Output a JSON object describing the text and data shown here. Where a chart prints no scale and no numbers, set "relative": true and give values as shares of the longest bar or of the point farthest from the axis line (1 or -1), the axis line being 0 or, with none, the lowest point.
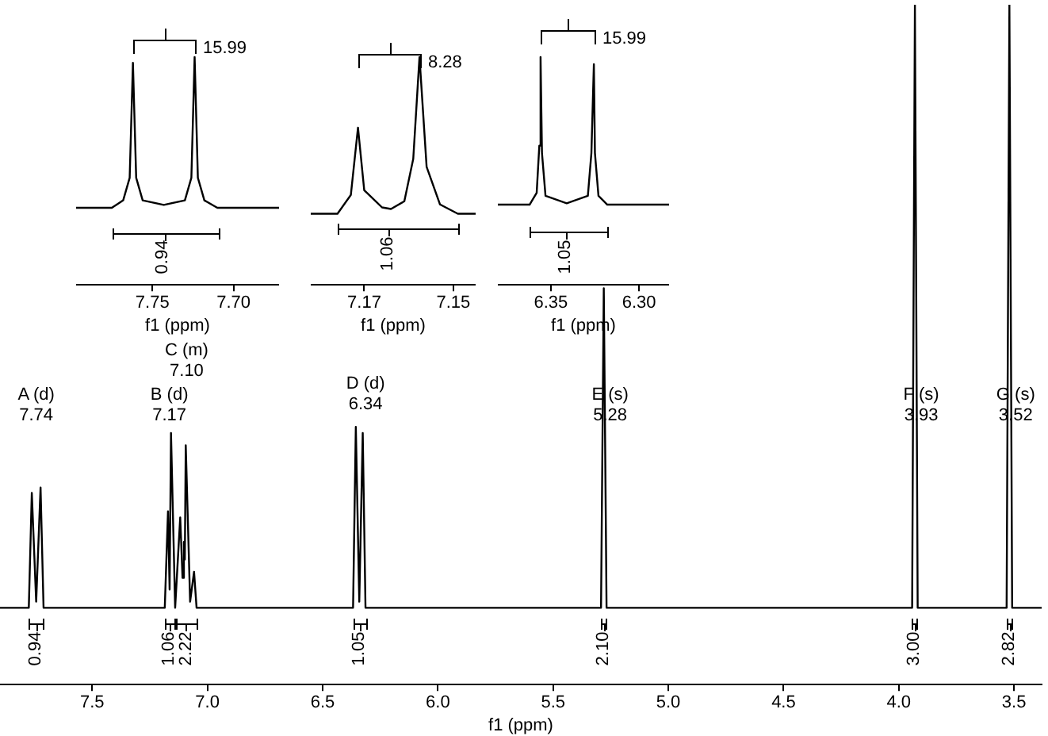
{
  "chart_data": [
    {
      "type": "line",
      "xlabel": "f1 (ppm)",
      "relative": true,
      "color": "#000000",
      "xlim": [
        7.9,
        3.38
      ],
      "xticks": [
        7.5,
        {
          "value": 7,
          "label": "7.0"
        },
        6.5,
        {
          "value": 6,
          "label": "6.0"
        },
        5.5,
        {
          "value": 5,
          "label": "5.0"
        },
        4.5,
        {
          "value": 4,
          "label": "4.0"
        },
        3.5
      ],
      "x": [
        7.9,
        7.775,
        7.762,
        7.743,
        7.724,
        7.711,
        7.185,
        7.171,
        7.164,
        7.158,
        7.14,
        7.118,
        7.108,
        7.102,
        7.098,
        7.094,
        7.075,
        7.058,
        7.047,
        6.368,
        6.356,
        6.341,
        6.326,
        6.314,
        5.292,
        5.28,
        5.268,
        3.942,
        3.93,
        3.918,
        3.532,
        3.52,
        3.508,
        3.38
      ],
      "values": [
        0.113,
        0.113,
        0.282,
        0.122,
        0.29,
        0.113,
        0.113,
        0.255,
        0.14,
        0.37,
        0.113,
        0.246,
        0.157,
        0.21,
        0.184,
        0.352,
        0.122,
        0.166,
        0.113,
        0.113,
        0.379,
        0.122,
        0.37,
        0.113,
        0.113,
        0.583,
        0.113,
        0.113,
        1,
        0.113,
        0.113,
        1,
        0.113,
        0.113
      ],
      "annotations": [
        "A (d)\n7.74",
        "B (d)\n7.17",
        "C (m)\n7.10",
        "D (d)\n6.34",
        "E (s)\n5.28",
        "F (s)\n3.93",
        "G (s)\n3.52",
        "0.94",
        "1.06",
        "2.22",
        "1.05",
        "2.10",
        "3.00",
        "2.82"
      ]
    },
    {
      "type": "line",
      "xlabel": "f1 (ppm)",
      "relative": true,
      "color": "#000000",
      "xlim": [
        7.797,
        7.672
      ],
      "xticks": [
        7.75,
        {
          "value": 7.7,
          "label": "7.70"
        }
      ],
      "x": [
        7.797,
        7.775,
        7.768,
        7.764,
        7.762,
        7.76,
        7.756,
        7.743,
        7.73,
        7.726,
        7.724,
        7.722,
        7.718,
        7.71,
        7.672
      ],
      "values": [
        0.338,
        0.338,
        0.371,
        0.47,
        0.974,
        0.47,
        0.371,
        0.351,
        0.371,
        0.47,
        1,
        0.47,
        0.371,
        0.338,
        0.338
      ],
      "annotations": [
        "15.99",
        "0.94"
      ]
    },
    {
      "type": "line",
      "xlabel": "f1 (ppm)",
      "relative": true,
      "color": "#000000",
      "xlim": [
        7.182,
        7.145
      ],
      "xticks": [
        7.17,
        7.15
      ],
      "x": [
        7.182,
        7.176,
        7.173,
        7.1714,
        7.17,
        7.166,
        7.164,
        7.161,
        7.159,
        7.1576,
        7.156,
        7.153,
        7.149,
        7.145
      ],
      "values": [
        0.312,
        0.312,
        0.395,
        0.69,
        0.415,
        0.34,
        0.333,
        0.367,
        0.553,
        1,
        0.518,
        0.353,
        0.312,
        0.312
      ],
      "annotations": [
        "8.28",
        "1.06"
      ]
    },
    {
      "type": "line",
      "xlabel": "f1 (ppm)",
      "relative": true,
      "color": "#000000",
      "xlim": [
        6.38,
        6.283
      ],
      "xticks": [
        6.35,
        {
          "value": 6.3,
          "label": "6.30"
        }
      ],
      "x": [
        6.38,
        6.362,
        6.358,
        6.3565,
        6.3558,
        6.355,
        6.353,
        6.341,
        6.329,
        6.327,
        6.3256,
        6.325,
        6.323,
        6.318,
        6.283
      ],
      "values": [
        0.352,
        0.352,
        0.404,
        0.611,
        1,
        0.579,
        0.391,
        0.358,
        0.391,
        0.579,
        0.968,
        0.579,
        0.391,
        0.352,
        0.352
      ],
      "annotations": [
        "15.99",
        "1.05"
      ]
    }
  ]
}
